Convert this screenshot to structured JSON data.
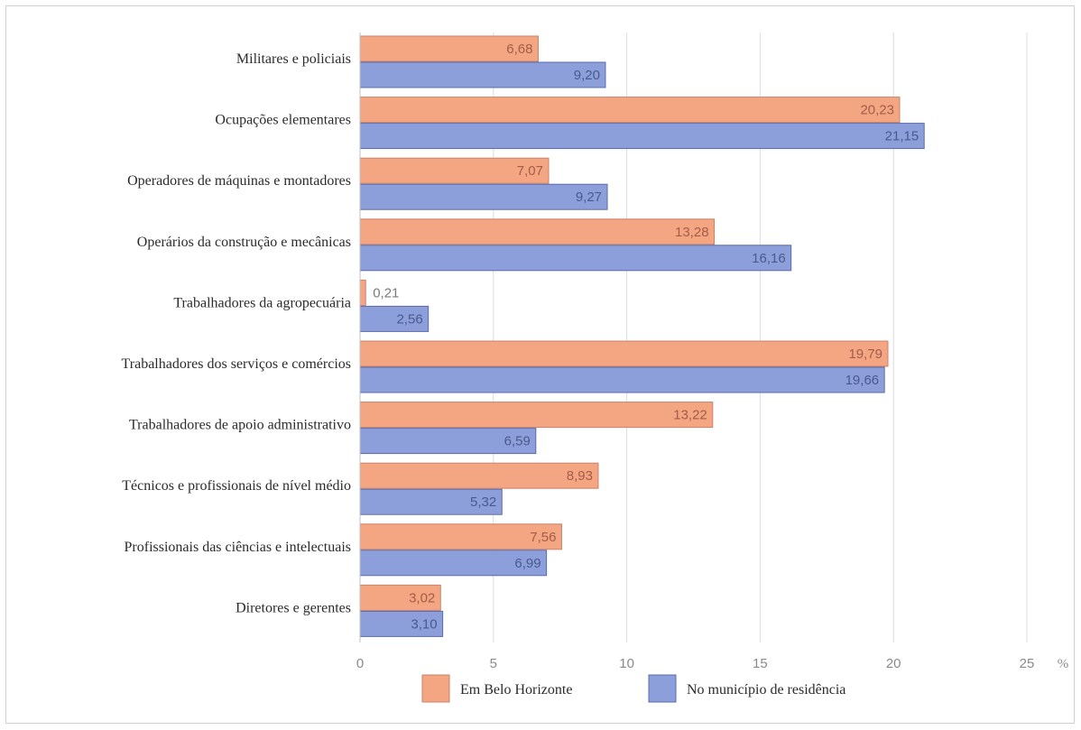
{
  "chart_data": {
    "type": "bar",
    "orientation": "horizontal",
    "title": "",
    "xlabel": "",
    "ylabel": "",
    "x_unit": "%",
    "xlim": [
      0,
      25
    ],
    "x_ticks": [
      0,
      5,
      10,
      15,
      20,
      25
    ],
    "grid": true,
    "legend_position": "bottom",
    "categories": [
      "Militares e policiais",
      "Ocupações elementares",
      "Operadores de máquinas e montadores",
      "Operários da construção e mecânicas",
      "Trabalhadores da agropecuária",
      "Trabalhadores dos serviços e comércios",
      "Trabalhadores de apoio administrativo",
      "Técnicos e profissionais de nível médio",
      "Profissionais das ciências e intelectuais",
      "Diretores e gerentes"
    ],
    "series": [
      {
        "name": "Em Belo Horizonte",
        "color": "#f4a582",
        "label_color": "#a35d4a",
        "values": [
          6.68,
          20.23,
          7.07,
          13.28,
          0.21,
          19.79,
          13.22,
          8.93,
          7.56,
          3.02
        ],
        "labels": [
          "6,68",
          "20,23",
          "7,07",
          "13,28",
          "0,21",
          "19,79",
          "13,22",
          "8,93",
          "7,56",
          "3,02"
        ]
      },
      {
        "name": "No município de residência",
        "color": "#8c9fdb",
        "label_color": "#4a5a8e",
        "values": [
          9.2,
          21.15,
          9.27,
          16.16,
          2.56,
          19.66,
          6.59,
          5.32,
          6.99,
          3.1
        ],
        "labels": [
          "9,20",
          "21,15",
          "9,27",
          "16,16",
          "2,56",
          "19,66",
          "6,59",
          "5,32",
          "6,99",
          "3,10"
        ]
      }
    ]
  }
}
